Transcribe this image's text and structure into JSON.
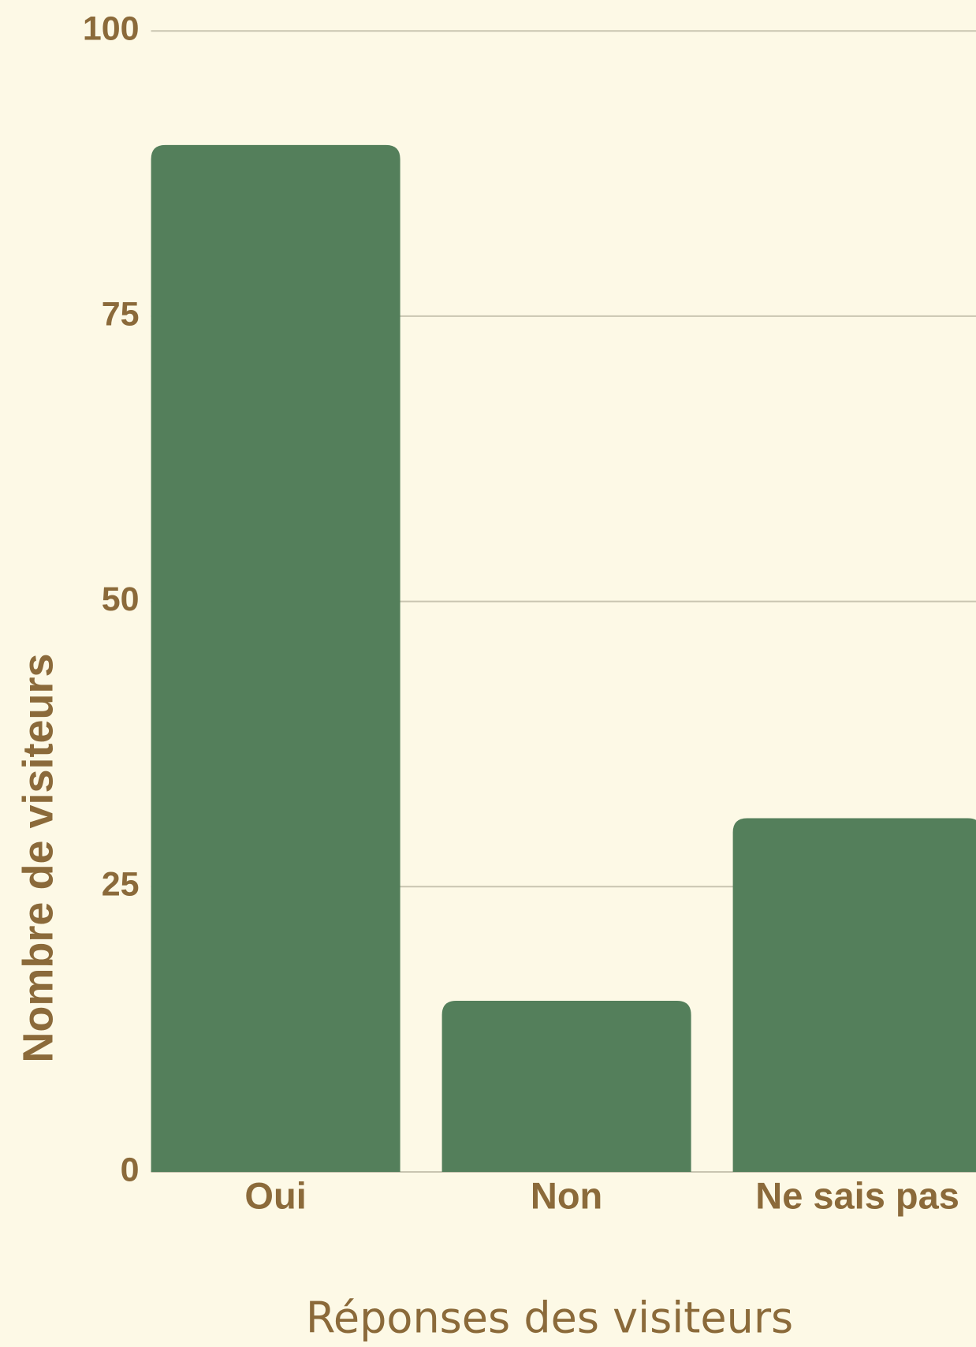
{
  "chart_data": {
    "type": "bar",
    "x_label": "Réponses des visiteurs",
    "y_label": "Nombre de visiteurs",
    "categories": [
      "Oui",
      "Non",
      "Ne sais pas"
    ],
    "values": [
      90,
      15,
      31
    ],
    "color": "#547f5b",
    "ylim": [
      0,
      100
    ],
    "yticks": [
      0,
      25,
      50,
      75,
      100
    ],
    "grid": true
  }
}
